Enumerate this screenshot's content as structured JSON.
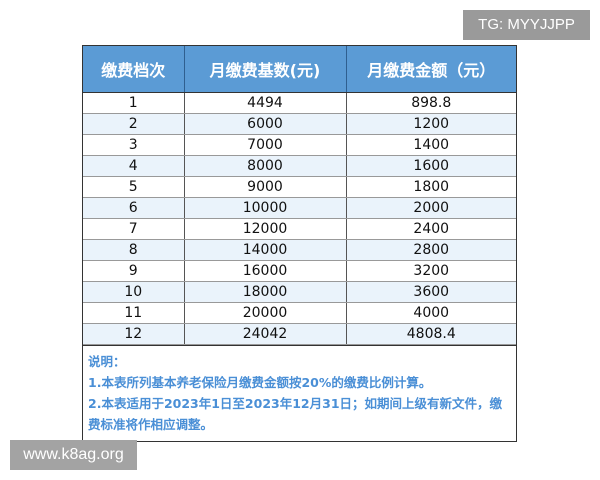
{
  "watermark_top": "TG: MYYJJPP",
  "watermark_bottom": "www.k8ag.org",
  "table": {
    "headers": [
      "缴费档次",
      "月缴费基数(元)",
      "月缴费金额（元）"
    ],
    "rows": [
      [
        "1",
        "4494",
        "898.8"
      ],
      [
        "2",
        "6000",
        "1200"
      ],
      [
        "3",
        "7000",
        "1400"
      ],
      [
        "4",
        "8000",
        "1600"
      ],
      [
        "5",
        "9000",
        "1800"
      ],
      [
        "6",
        "10000",
        "2000"
      ],
      [
        "7",
        "12000",
        "2400"
      ],
      [
        "8",
        "14000",
        "2800"
      ],
      [
        "9",
        "16000",
        "3200"
      ],
      [
        "10",
        "18000",
        "3600"
      ],
      [
        "11",
        "20000",
        "4000"
      ],
      [
        "12",
        "24042",
        "4808.4"
      ]
    ]
  },
  "notes": {
    "title": "说明：",
    "lines": [
      "1.本表所列基本养老保险月缴费金额按20%的缴费比例计算。",
      "2.本表适用于2023年1日至2023年12月31日；如期间上级有新文件，缴费标准将作相应调整。"
    ]
  },
  "colors": {
    "header_bg": "#5b9bd5",
    "note_text": "#4a8fd6",
    "alt_row": "#eaf3fb"
  }
}
